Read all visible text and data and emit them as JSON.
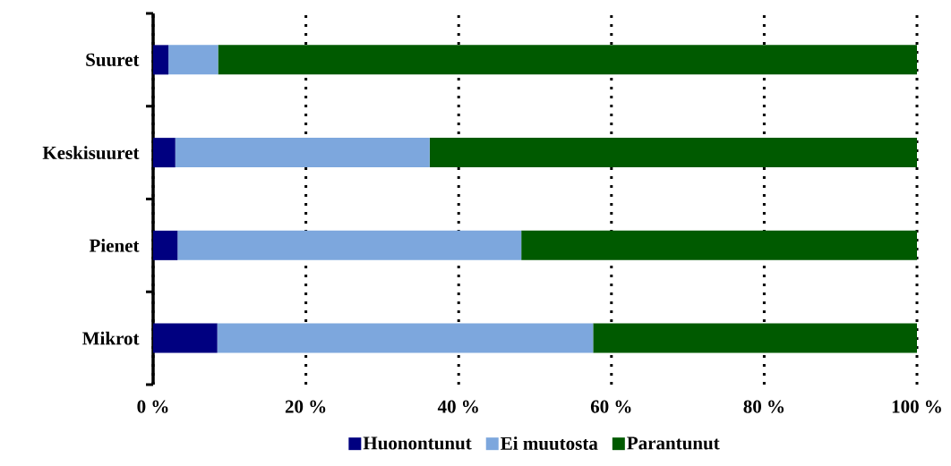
{
  "chart_data": {
    "type": "bar",
    "orientation": "horizontal",
    "stacked": true,
    "categories": [
      "Suuret",
      "Keskisuuret",
      "Pienet",
      "Mikrot"
    ],
    "series": [
      {
        "name": "Huonontunut",
        "color": "#000080",
        "values": [
          2.0,
          2.9,
          3.2,
          8.4
        ]
      },
      {
        "name": "Ei muutosta",
        "color": "#7da7dd",
        "values": [
          6.5,
          33.3,
          45.0,
          49.2
        ]
      },
      {
        "name": "Parantunut",
        "color": "#005a00",
        "values": [
          91.5,
          63.8,
          51.8,
          42.4
        ]
      }
    ],
    "xlim": [
      0,
      100
    ],
    "xticks": [
      {
        "value": 0,
        "label": "0 %"
      },
      {
        "value": 20,
        "label": "20 %"
      },
      {
        "value": 40,
        "label": "40 %"
      },
      {
        "value": 60,
        "label": "60 %"
      },
      {
        "value": 80,
        "label": "80 %"
      },
      {
        "value": 100,
        "label": "100 %"
      }
    ],
    "grid": "x",
    "legend": "bottom"
  }
}
